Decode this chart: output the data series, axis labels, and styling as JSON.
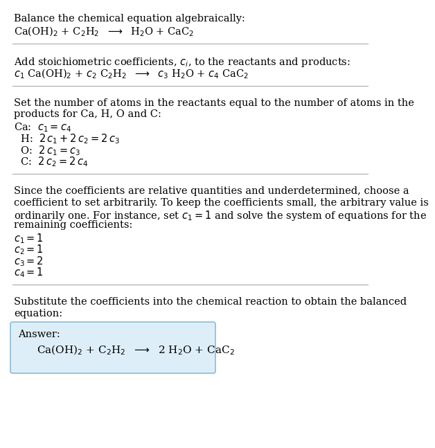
{
  "title_line1": "Balance the chemical equation algebraically:",
  "title_line2": "Ca(OH)$_2$ + C$_2$H$_2$  $\\longrightarrow$  H$_2$O + CaC$_2$",
  "section2_header": "Add stoichiometric coefficients, $c_i$, to the reactants and products:",
  "section2_math": "$c_1$ Ca(OH)$_2$ + $c_2$ C$_2$H$_2$  $\\longrightarrow$  $c_3$ H$_2$O + $c_4$ CaC$_2$",
  "section3_header_lines": [
    "Set the number of atoms in the reactants equal to the number of atoms in the",
    "products for Ca, H, O and C:"
  ],
  "section3_lines": [
    "Ca:  $c_1 = c_4$",
    "  H:  $2\\,c_1 + 2\\,c_2 = 2\\,c_3$",
    "  O:  $2\\,c_1 = c_3$",
    "  C:  $2\\,c_2 = 2\\,c_4$"
  ],
  "section4_header_lines": [
    "Since the coefficients are relative quantities and underdetermined, choose a",
    "coefficient to set arbitrarily. To keep the coefficients small, the arbitrary value is",
    "ordinarily one. For instance, set $c_1 = 1$ and solve the system of equations for the",
    "remaining coefficients:"
  ],
  "section4_lines": [
    "$c_1 = 1$",
    "$c_2 = 1$",
    "$c_3 = 2$",
    "$c_4 = 1$"
  ],
  "section5_header_lines": [
    "Substitute the coefficients into the chemical reaction to obtain the balanced",
    "equation:"
  ],
  "answer_label": "Answer:",
  "answer_math": "Ca(OH)$_2$ + C$_2$H$_2$  $\\longrightarrow$  2 H$_2$O + CaC$_2$",
  "bg_color": "#ffffff",
  "text_color": "#000000",
  "box_border_color": "#88bbdd",
  "box_bg_color": "#deeef8",
  "separator_color": "#aaaaaa",
  "font_size": 10.5
}
